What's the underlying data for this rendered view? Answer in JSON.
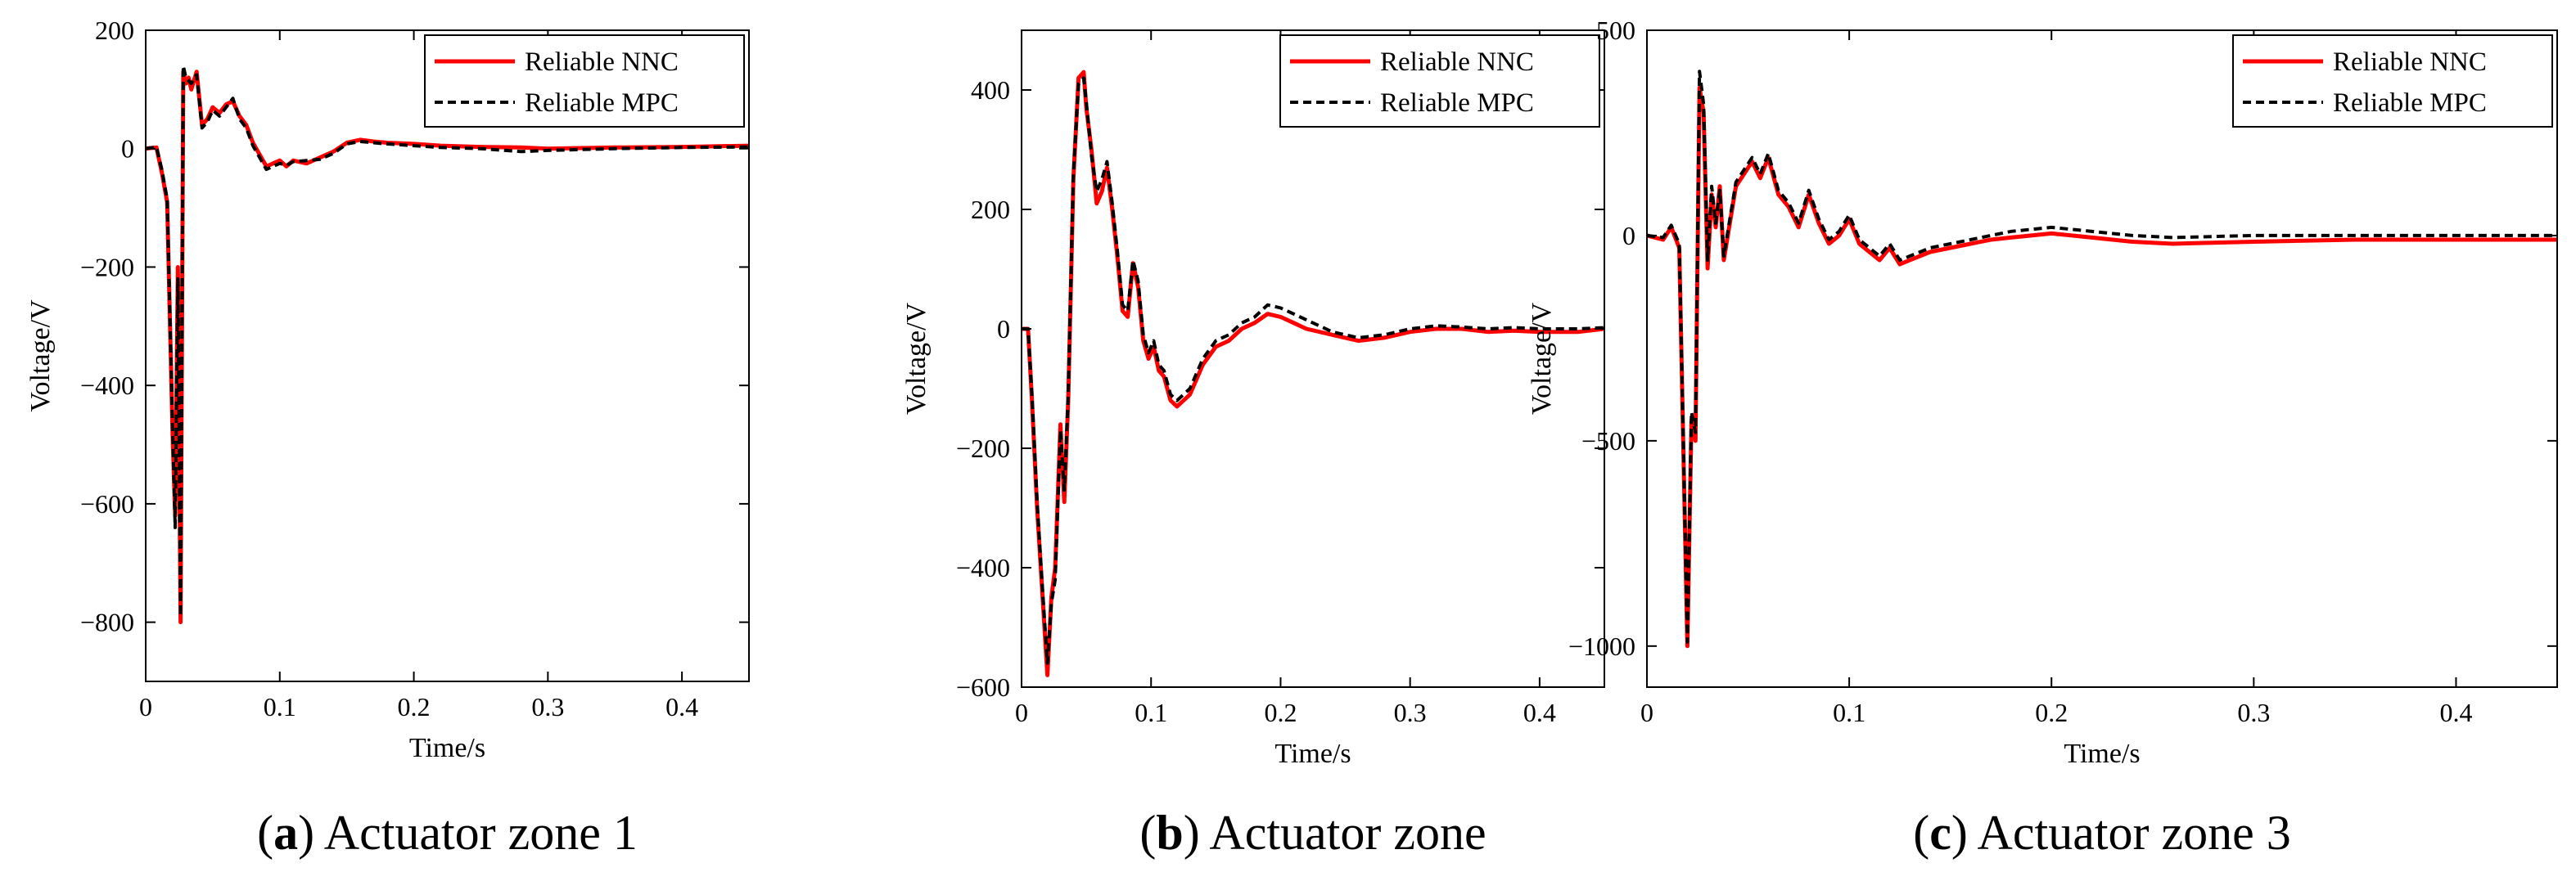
{
  "chart_data": [
    {
      "type": "line",
      "caption_letter": "a",
      "caption_text": ") Actuator zone 1",
      "caption_open": "(",
      "xlabel": "Time/s",
      "ylabel": "Voltage/V",
      "xlim": [
        0,
        0.45
      ],
      "ylim": [
        -900,
        200
      ],
      "xticks": [
        0,
        0.1,
        0.2,
        0.3,
        0.4
      ],
      "xtick_labels": [
        "0",
        "0.1",
        "0.2",
        "0.3",
        "0.4"
      ],
      "yticks": [
        200,
        0,
        -200,
        -400,
        -600,
        -800
      ],
      "ytick_labels": [
        "200",
        "0",
        "−200",
        "−400",
        "−600",
        "−800"
      ],
      "legend": [
        "Reliable NNC",
        "Reliable MPC"
      ],
      "series": [
        {
          "name": "Reliable NNC",
          "color": "#ff0000",
          "style": "solid",
          "x": [
            0,
            0.008,
            0.012,
            0.016,
            0.02,
            0.022,
            0.024,
            0.026,
            0.028,
            0.03,
            0.032,
            0.034,
            0.038,
            0.042,
            0.046,
            0.05,
            0.055,
            0.06,
            0.065,
            0.07,
            0.075,
            0.08,
            0.085,
            0.09,
            0.095,
            0.1,
            0.105,
            0.11,
            0.12,
            0.13,
            0.14,
            0.15,
            0.16,
            0.17,
            0.18,
            0.2,
            0.22,
            0.25,
            0.28,
            0.3,
            0.35,
            0.4,
            0.45
          ],
          "y": [
            0,
            2,
            -40,
            -90,
            -480,
            -620,
            -200,
            -800,
            130,
            110,
            120,
            100,
            130,
            40,
            50,
            70,
            60,
            75,
            80,
            55,
            40,
            10,
            -10,
            -30,
            -25,
            -20,
            -30,
            -20,
            -25,
            -15,
            -5,
            10,
            15,
            12,
            10,
            8,
            5,
            3,
            2,
            0,
            2,
            3,
            5
          ]
        },
        {
          "name": "Reliable MPC",
          "color": "#000000",
          "style": "dashed",
          "x": [
            0,
            0.008,
            0.012,
            0.016,
            0.02,
            0.022,
            0.024,
            0.026,
            0.028,
            0.03,
            0.032,
            0.034,
            0.038,
            0.042,
            0.046,
            0.05,
            0.055,
            0.06,
            0.065,
            0.07,
            0.075,
            0.08,
            0.085,
            0.09,
            0.095,
            0.1,
            0.105,
            0.11,
            0.12,
            0.13,
            0.14,
            0.15,
            0.16,
            0.17,
            0.18,
            0.2,
            0.22,
            0.25,
            0.28,
            0.3,
            0.35,
            0.4,
            0.45
          ],
          "y": [
            0,
            3,
            -35,
            -85,
            -470,
            -640,
            -220,
            -790,
            140,
            120,
            115,
            110,
            125,
            35,
            45,
            65,
            55,
            70,
            85,
            50,
            35,
            5,
            -15,
            -35,
            -30,
            -25,
            -28,
            -22,
            -20,
            -18,
            -8,
            8,
            12,
            10,
            8,
            5,
            2,
            0,
            -5,
            -3,
            0,
            2,
            3
          ]
        }
      ]
    },
    {
      "type": "line",
      "caption_letter": "b",
      "caption_text": ") Actuator zone",
      "caption_open": "(",
      "xlabel": "Time/s",
      "ylabel": "Voltage/V",
      "xlim": [
        0,
        0.45
      ],
      "ylim": [
        -600,
        500
      ],
      "xticks": [
        0,
        0.1,
        0.2,
        0.3,
        0.4
      ],
      "xtick_labels": [
        "0",
        "0.1",
        "0.2",
        "0.3",
        "0.4"
      ],
      "yticks": [
        400,
        200,
        0,
        -200,
        -400,
        -600
      ],
      "ytick_labels": [
        "400",
        "200",
        "0",
        "−200",
        "−400",
        "−600"
      ],
      "legend": [
        "Reliable NNC",
        "Reliable MPC"
      ],
      "series": [
        {
          "name": "Reliable NNC",
          "color": "#ff0000",
          "style": "solid",
          "x": [
            0,
            0.005,
            0.008,
            0.012,
            0.016,
            0.02,
            0.023,
            0.026,
            0.03,
            0.033,
            0.036,
            0.04,
            0.044,
            0.048,
            0.05,
            0.054,
            0.058,
            0.062,
            0.066,
            0.07,
            0.074,
            0.078,
            0.082,
            0.086,
            0.09,
            0.094,
            0.098,
            0.102,
            0.106,
            0.11,
            0.115,
            0.12,
            0.13,
            0.14,
            0.15,
            0.16,
            0.17,
            0.18,
            0.19,
            0.2,
            0.21,
            0.22,
            0.24,
            0.26,
            0.28,
            0.3,
            0.32,
            0.34,
            0.36,
            0.38,
            0.4,
            0.43,
            0.45
          ],
          "y": [
            0,
            0,
            -120,
            -300,
            -440,
            -580,
            -450,
            -400,
            -160,
            -290,
            -120,
            250,
            420,
            430,
            370,
            300,
            210,
            230,
            270,
            200,
            120,
            30,
            20,
            110,
            70,
            -20,
            -50,
            -30,
            -70,
            -80,
            -120,
            -130,
            -110,
            -60,
            -30,
            -20,
            0,
            10,
            25,
            20,
            10,
            0,
            -10,
            -20,
            -15,
            -5,
            0,
            0,
            -5,
            -3,
            -5,
            -5,
            0
          ]
        },
        {
          "name": "Reliable MPC",
          "color": "#000000",
          "style": "dashed",
          "x": [
            0,
            0.005,
            0.008,
            0.012,
            0.016,
            0.02,
            0.023,
            0.026,
            0.03,
            0.033,
            0.036,
            0.04,
            0.044,
            0.048,
            0.05,
            0.054,
            0.058,
            0.062,
            0.066,
            0.07,
            0.074,
            0.078,
            0.082,
            0.086,
            0.09,
            0.094,
            0.098,
            0.102,
            0.106,
            0.11,
            0.115,
            0.12,
            0.13,
            0.14,
            0.15,
            0.16,
            0.17,
            0.18,
            0.19,
            0.2,
            0.21,
            0.22,
            0.24,
            0.26,
            0.28,
            0.3,
            0.32,
            0.34,
            0.36,
            0.38,
            0.4,
            0.43,
            0.45
          ],
          "y": [
            0,
            0,
            -110,
            -290,
            -430,
            -560,
            -460,
            -420,
            -170,
            -270,
            -110,
            260,
            410,
            420,
            380,
            290,
            230,
            250,
            280,
            210,
            130,
            40,
            30,
            115,
            80,
            -10,
            -40,
            -20,
            -60,
            -70,
            -110,
            -120,
            -100,
            -50,
            -20,
            -10,
            10,
            20,
            40,
            35,
            25,
            15,
            -5,
            -15,
            -10,
            0,
            5,
            3,
            0,
            2,
            0,
            0,
            2
          ]
        }
      ]
    },
    {
      "type": "line",
      "caption_letter": "c",
      "caption_text": ") Actuator zone 3",
      "caption_open": "(",
      "xlabel": "Time/s",
      "ylabel": "Voltage/V",
      "xlim": [
        0,
        0.45
      ],
      "ylim": [
        -1100,
        500
      ],
      "xticks": [
        0,
        0.1,
        0.2,
        0.3,
        0.4
      ],
      "xtick_labels": [
        "0",
        "0.1",
        "0.2",
        "0.3",
        "0.4"
      ],
      "yticks": [
        500,
        0,
        -500,
        -1000
      ],
      "ytick_labels": [
        "500",
        "0",
        "−500",
        "−1000"
      ],
      "legend": [
        "Reliable NNC",
        "Reliable MPC"
      ],
      "series": [
        {
          "name": "Reliable NNC",
          "color": "#ff0000",
          "style": "solid",
          "x": [
            0,
            0.008,
            0.012,
            0.016,
            0.02,
            0.022,
            0.024,
            0.026,
            0.028,
            0.03,
            0.032,
            0.034,
            0.036,
            0.038,
            0.04,
            0.044,
            0.048,
            0.052,
            0.056,
            0.06,
            0.065,
            0.07,
            0.075,
            0.08,
            0.085,
            0.09,
            0.095,
            0.1,
            0.105,
            0.11,
            0.115,
            0.12,
            0.125,
            0.13,
            0.14,
            0.15,
            0.16,
            0.17,
            0.18,
            0.2,
            0.22,
            0.24,
            0.26,
            0.3,
            0.35,
            0.4,
            0.45
          ],
          "y": [
            0,
            -10,
            20,
            -30,
            -1000,
            -450,
            -500,
            360,
            300,
            -80,
            100,
            20,
            120,
            -60,
            0,
            120,
            150,
            180,
            140,
            190,
            100,
            70,
            20,
            100,
            30,
            -20,
            0,
            40,
            -20,
            -40,
            -60,
            -30,
            -70,
            -60,
            -40,
            -30,
            -20,
            -10,
            -5,
            5,
            -5,
            -15,
            -20,
            -15,
            -10,
            -10,
            -10
          ]
        },
        {
          "name": "Reliable MPC",
          "color": "#000000",
          "style": "dashed",
          "x": [
            0,
            0.008,
            0.012,
            0.016,
            0.02,
            0.022,
            0.024,
            0.026,
            0.028,
            0.03,
            0.032,
            0.034,
            0.036,
            0.038,
            0.04,
            0.044,
            0.048,
            0.052,
            0.056,
            0.06,
            0.065,
            0.07,
            0.075,
            0.08,
            0.085,
            0.09,
            0.095,
            0.1,
            0.105,
            0.11,
            0.115,
            0.12,
            0.125,
            0.13,
            0.14,
            0.15,
            0.16,
            0.17,
            0.18,
            0.2,
            0.22,
            0.24,
            0.26,
            0.3,
            0.35,
            0.4,
            0.45
          ],
          "y": [
            0,
            -5,
            25,
            -20,
            -990,
            -430,
            -480,
            400,
            320,
            -60,
            120,
            30,
            110,
            -50,
            10,
            130,
            160,
            190,
            150,
            200,
            110,
            80,
            30,
            110,
            40,
            -10,
            10,
            50,
            -10,
            -30,
            -50,
            -20,
            -60,
            -50,
            -30,
            -20,
            -10,
            0,
            10,
            20,
            10,
            0,
            -5,
            0,
            0,
            0,
            0
          ]
        }
      ]
    }
  ]
}
